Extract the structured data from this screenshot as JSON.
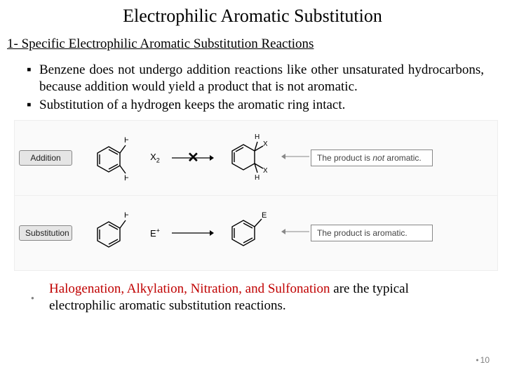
{
  "title": "Electrophilic Aromatic Substitution",
  "subtitle": "1- Specific Electrophilic Aromatic Substitution Reactions",
  "bullets": [
    "Benzene does not undergo addition reactions like other unsaturated hydrocarbons, because addition would yield a product that is not aromatic.",
    "Substitution of a hydrogen keeps the aromatic ring intact."
  ],
  "diagram": {
    "addition": {
      "tag": "Addition",
      "reagent_html": "X<span class='sub'>2</span>",
      "crossed": true,
      "start_labels_top": "H",
      "start_labels_bottom": "H",
      "prod_labels": [
        "H",
        "X",
        "H",
        "X"
      ],
      "result_html": "The product is <em>not</em> aromatic."
    },
    "substitution": {
      "tag": "Substitution",
      "reagent_html": "E<span class='sup'>+</span>",
      "crossed": false,
      "start_label": "H",
      "prod_label": "E",
      "result_html": "The product is aromatic."
    },
    "colors": {
      "tag_bg": "#e5e5e5",
      "tag_border": "#888888",
      "ring_stroke": "#000000",
      "arrow_stroke": "#000000",
      "result_border": "#888888"
    }
  },
  "footer": {
    "highlighted_terms": "Halogenation, Alkylation, Nitration, and Sulfonation",
    "rest": " are the typical electrophilic aromatic substitution reactions.",
    "highlight_color": "#c00000"
  },
  "page_number": "10"
}
